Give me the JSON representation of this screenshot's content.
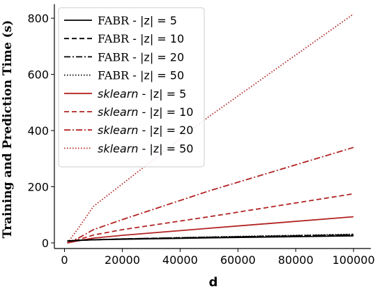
{
  "chart_data": {
    "type": "line",
    "title": "",
    "xlabel": "d",
    "ylabel": "Training and Prediction Time (s)",
    "xlim": [
      -3500,
      106000
    ],
    "ylim": [
      -20,
      850
    ],
    "x_ticks": [
      0,
      20000,
      40000,
      60000,
      80000,
      100000
    ],
    "x_tick_labels": [
      "0",
      "20000",
      "40000",
      "60000",
      "80000",
      "100000"
    ],
    "y_ticks": [
      0,
      200,
      400,
      600,
      800
    ],
    "y_tick_labels": [
      "0",
      "200",
      "400",
      "600",
      "800"
    ],
    "grid": false,
    "legend_position": "top-left",
    "series": [
      {
        "name_prefix": "FABR",
        "name_suffix": "|z| = 5",
        "color": "#000000",
        "dash": "solid",
        "x": [
          1000,
          5000,
          10000,
          20000,
          50000,
          100000
        ],
        "y": [
          7,
          9,
          11,
          13,
          18,
          25
        ]
      },
      {
        "name_prefix": "FABR",
        "name_suffix": "|z| = 10",
        "color": "#000000",
        "dash": "dashed",
        "x": [
          1000,
          5000,
          10000,
          20000,
          50000,
          100000
        ],
        "y": [
          7,
          9,
          11,
          14,
          20,
          29
        ]
      },
      {
        "name_prefix": "FABR",
        "name_suffix": "|z| = 20",
        "color": "#000000",
        "dash": "dashdot",
        "x": [
          1000,
          5000,
          10000,
          20000,
          50000,
          100000
        ],
        "y": [
          7,
          9,
          11,
          14,
          20,
          29
        ]
      },
      {
        "name_prefix": "FABR",
        "name_suffix": "|z| = 50",
        "color": "#000000",
        "dash": "dotted",
        "x": [
          1000,
          5000,
          10000,
          20000,
          50000,
          100000
        ],
        "y": [
          6,
          9,
          11,
          14,
          21,
          31
        ]
      },
      {
        "name_prefix": "sklearn",
        "name_suffix": "|z| = 5",
        "color": "#b22222",
        "dash": "solid",
        "x": [
          1000,
          5000,
          10000,
          20000,
          50000,
          100000
        ],
        "y": [
          0,
          8,
          17,
          27,
          52,
          93
        ]
      },
      {
        "name_prefix": "sklearn",
        "name_suffix": "|z| = 10",
        "color": "#b22222",
        "dash": "dashed",
        "x": [
          1000,
          5000,
          10000,
          20000,
          50000,
          100000
        ],
        "y": [
          0,
          12,
          28,
          47,
          93,
          175
        ]
      },
      {
        "name_prefix": "sklearn",
        "name_suffix": "|z| = 20",
        "color": "#b22222",
        "dash": "dashdot",
        "x": [
          1000,
          5000,
          10000,
          20000,
          50000,
          100000
        ],
        "y": [
          0,
          18,
          47,
          83,
          185,
          340
        ]
      },
      {
        "name_prefix": "sklearn",
        "name_suffix": "|z| = 50",
        "color": "#b22222",
        "dash": "dotted",
        "x": [
          1000,
          5000,
          10000,
          20000,
          50000,
          100000
        ],
        "y": [
          0,
          55,
          130,
          210,
          450,
          815
        ]
      }
    ]
  }
}
